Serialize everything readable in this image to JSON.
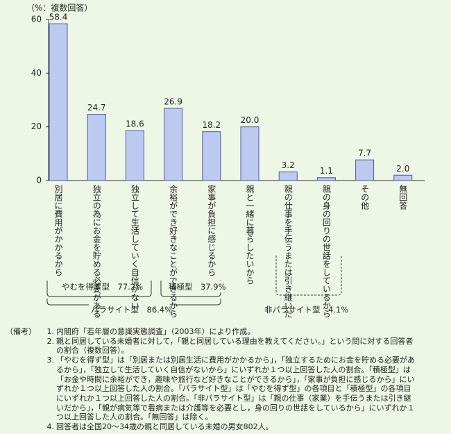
{
  "chart_data": {
    "type": "bar",
    "y_label": "（%：複数回答）",
    "categories": [
      [
        "別居に費用がかかるから"
      ],
      [
        "独立の為に",
        "お金を貯める必要がある"
      ],
      [
        "独立して生活していく",
        "自信がない"
      ],
      [
        "余裕ができ好きなことが",
        "できるから"
      ],
      [
        "家事が負担に",
        "感じるから"
      ],
      [
        "親と一緒に暮らしたいから"
      ],
      [
        "親の仕事を手伝う",
        "または引き継いだ"
      ],
      [
        "親の身の回りの",
        "世話をしているから"
      ],
      [
        "その他"
      ],
      [
        "無回答"
      ]
    ],
    "values": [
      58.4,
      24.7,
      18.6,
      26.9,
      18.2,
      20.0,
      3.2,
      1.1,
      7.7,
      2.0
    ],
    "value_labels": [
      "58.4",
      "24.7",
      "18.6",
      "26.9",
      "18.2",
      "20.0",
      "3.2",
      "1.1",
      "7.7",
      "2.0"
    ],
    "color": "#bccaf0",
    "ylim": [
      0,
      60
    ],
    "yticks": [
      0,
      20,
      40,
      60
    ],
    "annotations": [
      "やむを得ず型　77.2%",
      "積極型　37.9%",
      "パラサイト型　86.4%",
      "非パラサイト型　4.1%"
    ]
  },
  "notes": {
    "label": "（備考）",
    "items": [
      {
        "number": "1.",
        "lines": [
          "内閣府「若年層の意識実態調査」（2003年）により作成。"
        ]
      },
      {
        "number": "2.",
        "lines": [
          "親と同居している未婚者に対して，「親と同居している理由を教えてください。」という問に対する回答者",
          "の割合（複数回答）。"
        ]
      },
      {
        "number": "3.",
        "lines": [
          "「やむを得ず型」は「別居または別居生活に費用がかかるから」，「独立するためにお金を貯める必要があ",
          "るから」，「独立して生活していく自信がないから」にいずれか１つ以上回答した人の割合。「積極型」は",
          "「お金や時間に余裕ができ，趣味や旅行など好きなことができるから」，「家事が負担に感じるから」にい",
          "ずれか１つ以上回答した人の割合。「パラサイト型」は「やむを得ず型」の各項目と「積極型」の各項目",
          "にいずれか１つ以上回答した人の割合。「非パラサイト型」は「親の仕事（家業）を手伝うまたは引き継",
          "いだから」，「親が病気等で看病または介護等を必要とし，身の回りの世話をしているから」にいずれか１",
          "つ以上回答した人の割合。「無回答」は除く。"
        ]
      },
      {
        "number": "4.",
        "lines": [
          "回答者は全国20～34歳の親と同居している未婚の男女802人。"
        ]
      }
    ]
  }
}
